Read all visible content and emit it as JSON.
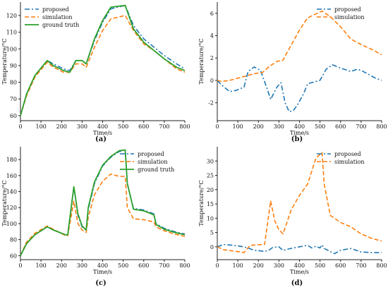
{
  "colors": {
    "proposed": "#1f77b4",
    "simulation": "#ff7f0e",
    "ground_truth": "#2ca02c"
  },
  "chart_data": [
    {
      "type": "line",
      "caption": "(a)",
      "xlabel": "Time/s",
      "ylabel": "Temperature/°C",
      "xlim": [
        0,
        800
      ],
      "ylim": [
        57,
        128
      ],
      "xticks": [
        0,
        100,
        200,
        300,
        400,
        500,
        600,
        700,
        800
      ],
      "yticks": [
        60,
        70,
        80,
        90,
        100,
        110,
        120
      ],
      "legend": "top-left",
      "series": [
        {
          "name": "proposed",
          "style": "dashdot",
          "color": "#1f77b4",
          "x": [
            0,
            30,
            70,
            130,
            160,
            210,
            240,
            270,
            300,
            320,
            360,
            400,
            440,
            510,
            550,
            600,
            650,
            700,
            760,
            800
          ],
          "y": [
            60,
            73,
            84,
            93,
            91,
            88,
            87,
            93,
            93,
            91,
            105,
            116,
            124,
            126,
            114,
            106,
            101,
            96,
            91,
            88
          ]
        },
        {
          "name": "simulation",
          "style": "dashed",
          "color": "#ff7f0e",
          "x": [
            0,
            30,
            70,
            130,
            160,
            210,
            240,
            270,
            300,
            320,
            360,
            400,
            440,
            510,
            550,
            600,
            650,
            700,
            760,
            800
          ],
          "y": [
            60,
            72,
            83,
            92,
            89,
            86,
            86,
            91,
            91,
            89,
            101,
            111,
            118,
            120,
            111,
            103,
            99,
            94,
            88,
            86
          ]
        },
        {
          "name": "ground truth",
          "style": "solid",
          "color": "#2ca02c",
          "x": [
            0,
            30,
            70,
            130,
            160,
            210,
            240,
            270,
            300,
            320,
            360,
            400,
            440,
            510,
            550,
            600,
            650,
            700,
            760,
            800
          ],
          "y": [
            60,
            73,
            84,
            93,
            90,
            87,
            86,
            93,
            93,
            91,
            106,
            117,
            125,
            126,
            112,
            104,
            99,
            94,
            89,
            87
          ]
        }
      ]
    },
    {
      "type": "line",
      "caption": "(b)",
      "xlabel": "Time/s",
      "ylabel": "Temperature/°C",
      "xlim": [
        0,
        800
      ],
      "ylim": [
        -3.6,
        7
      ],
      "xticks": [
        0,
        100,
        200,
        300,
        400,
        500,
        600,
        700,
        800
      ],
      "yticks": [
        -2,
        0,
        2,
        4,
        6
      ],
      "legend": "top-right",
      "series": [
        {
          "name": "proposed",
          "style": "dashdot",
          "color": "#1f77b4",
          "x": [
            0,
            20,
            60,
            90,
            130,
            150,
            180,
            210,
            240,
            260,
            290,
            310,
            330,
            350,
            370,
            390,
            420,
            440,
            500,
            530,
            560,
            600,
            650,
            680,
            700,
            740,
            770,
            800
          ],
          "y": [
            0,
            -0.4,
            -1.0,
            -0.9,
            -0.6,
            0.8,
            1.2,
            0.9,
            -0.6,
            -1.7,
            -0.6,
            -0.2,
            -2.0,
            -2.8,
            -2.7,
            -2.2,
            -1.2,
            -0.3,
            0.0,
            1.0,
            1.4,
            1.1,
            0.8,
            1.0,
            0.9,
            0.5,
            0.2,
            0.0
          ]
        },
        {
          "name": "simulation",
          "style": "dashed",
          "color": "#ff7f0e",
          "x": [
            0,
            20,
            60,
            100,
            140,
            180,
            220,
            250,
            290,
            320,
            340,
            400,
            440,
            510,
            550,
            600,
            650,
            700,
            750,
            800
          ],
          "y": [
            0,
            -0.1,
            0.0,
            0.2,
            0.4,
            0.6,
            0.7,
            1.2,
            1.7,
            1.8,
            2.5,
            4.5,
            5.6,
            6.2,
            5.7,
            4.8,
            3.7,
            3.2,
            2.8,
            2.3
          ]
        }
      ]
    },
    {
      "type": "line",
      "caption": "(c)",
      "xlabel": "Time/s",
      "ylabel": "Temperature/°C",
      "xlim": [
        0,
        800
      ],
      "ylim": [
        55,
        196
      ],
      "xticks": [
        0,
        100,
        200,
        300,
        400,
        500,
        600,
        700,
        800
      ],
      "yticks": [
        60,
        80,
        100,
        120,
        140,
        160,
        180
      ],
      "legend": "top-right",
      "series": [
        {
          "name": "proposed",
          "style": "dashdot",
          "color": "#1f77b4",
          "x": [
            0,
            30,
            70,
            130,
            160,
            220,
            230,
            260,
            280,
            300,
            320,
            330,
            360,
            400,
            440,
            480,
            510,
            520,
            550,
            600,
            650,
            660,
            700,
            750,
            800
          ],
          "y": [
            60,
            75,
            86,
            96,
            92,
            86,
            86,
            146,
            110,
            96,
            92,
            118,
            150,
            172,
            183,
            190,
            192,
            150,
            119,
            117,
            112,
            100,
            94,
            90,
            87
          ]
        },
        {
          "name": "simulation",
          "style": "dashed",
          "color": "#ff7f0e",
          "x": [
            0,
            30,
            70,
            130,
            160,
            220,
            230,
            260,
            280,
            300,
            320,
            330,
            360,
            400,
            440,
            480,
            510,
            520,
            550,
            600,
            650,
            660,
            700,
            750,
            800
          ],
          "y": [
            60,
            77,
            88,
            97,
            93,
            85,
            85,
            128,
            100,
            92,
            89,
            108,
            136,
            153,
            162,
            159,
            159,
            120,
            106,
            105,
            102,
            96,
            91,
            87,
            84
          ]
        },
        {
          "name": "ground truth",
          "style": "solid",
          "color": "#2ca02c",
          "x": [
            0,
            30,
            70,
            130,
            160,
            220,
            230,
            260,
            280,
            300,
            320,
            330,
            360,
            400,
            440,
            480,
            510,
            520,
            550,
            600,
            650,
            660,
            700,
            750,
            800
          ],
          "y": [
            60,
            75,
            86,
            96,
            92,
            86,
            86,
            146,
            112,
            97,
            92,
            120,
            152,
            173,
            184,
            191,
            192,
            150,
            118,
            116,
            111,
            99,
            93,
            89,
            86
          ]
        }
      ]
    },
    {
      "type": "line",
      "caption": "(d)",
      "xlabel": "Time/s",
      "ylabel": "Temperature/°C",
      "xlim": [
        0,
        800
      ],
      "ylim": [
        -4.5,
        35
      ],
      "xticks": [
        0,
        100,
        200,
        300,
        400,
        500,
        600,
        700,
        800
      ],
      "yticks": [
        0,
        5,
        10,
        15,
        20,
        25,
        30
      ],
      "legend": "top-right",
      "series": [
        {
          "name": "proposed",
          "style": "dashdot",
          "color": "#1f77b4",
          "x": [
            0,
            30,
            80,
            130,
            180,
            230,
            250,
            270,
            300,
            320,
            350,
            400,
            440,
            460,
            480,
            500,
            510,
            520,
            560,
            570,
            600,
            650,
            700,
            750,
            800
          ],
          "y": [
            0,
            0.8,
            0.5,
            0.0,
            -1.2,
            -1.6,
            -1.3,
            -0.2,
            0.0,
            -1.3,
            -0.7,
            0.0,
            0.5,
            -0.4,
            0.2,
            -0.4,
            0.7,
            -0.6,
            -2.0,
            -2.4,
            -1.2,
            -0.6,
            -1.8,
            -2.0,
            -2.0
          ]
        },
        {
          "name": "simulation",
          "style": "dashed",
          "color": "#ff7f0e",
          "x": [
            0,
            30,
            80,
            130,
            160,
            220,
            230,
            260,
            280,
            300,
            320,
            360,
            400,
            440,
            480,
            510,
            520,
            550,
            600,
            650,
            700,
            750,
            800
          ],
          "y": [
            0,
            -1.0,
            -1.5,
            -2.0,
            0.5,
            0.8,
            0.8,
            16,
            9,
            6,
            4.5,
            13,
            18,
            22,
            31,
            33,
            22,
            11,
            8.5,
            7,
            4.5,
            3,
            2
          ]
        }
      ]
    }
  ]
}
